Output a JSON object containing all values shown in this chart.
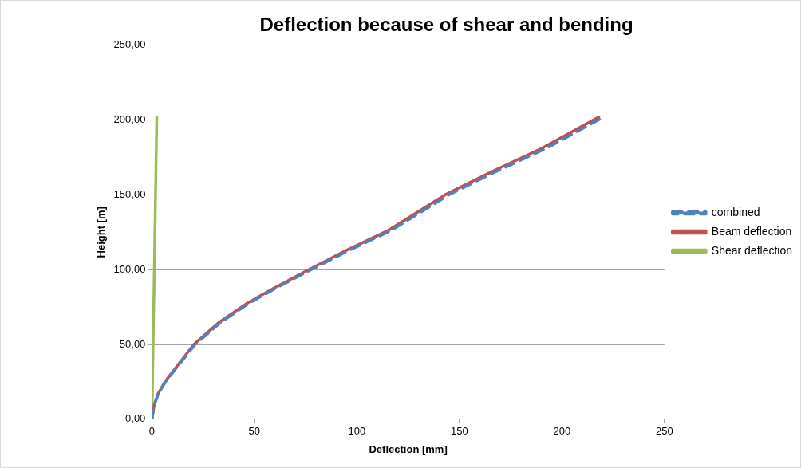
{
  "chart_data": {
    "type": "line",
    "title": "Deflection because of shear and bending",
    "xlabel": "Deflection [mm]",
    "ylabel": "Height [m]",
    "xlim": [
      0,
      250
    ],
    "xticks": [
      0,
      50,
      100,
      150,
      200,
      250
    ],
    "ylim": [
      0,
      250
    ],
    "yticks": [
      {
        "value": 0,
        "label": "0,00"
      },
      {
        "value": 50,
        "label": "50,00"
      },
      {
        "value": 100,
        "label": "100,00"
      },
      {
        "value": 150,
        "label": "150,00"
      },
      {
        "value": 200,
        "label": "200,00"
      },
      {
        "value": 250,
        "label": "250,00"
      }
    ],
    "grid": "y",
    "legend": "right",
    "marker": "none",
    "series": [
      {
        "name": "combined",
        "color": "#4f81bd",
        "line_style": "dashed",
        "x": [
          0,
          1.3,
          3.2,
          6.7,
          12.4,
          21.1,
          33.8,
          48,
          61,
          77.7,
          96.4,
          116.5,
          144.8,
          167,
          192.2,
          220.4
        ],
        "values": [
          0,
          10,
          17,
          25,
          35,
          50,
          65,
          78,
          88,
          100,
          113,
          126,
          150,
          165,
          181,
          202
        ]
      },
      {
        "name": "Beam deflection",
        "color": "#c0504d",
        "line_style": "solid",
        "x": [
          0,
          1.2,
          3,
          6.4,
          12,
          20.5,
          33,
          47,
          60,
          76.5,
          95,
          115,
          143,
          165,
          190,
          218
        ],
        "values": [
          0,
          10,
          17,
          25,
          35,
          50,
          65,
          78,
          88,
          100,
          113,
          126,
          150,
          165,
          181,
          202
        ]
      },
      {
        "name": "Shear deflection",
        "color": "#9bbb59",
        "line_style": "solid",
        "x": [
          0,
          1.2,
          2.4
        ],
        "values": [
          0,
          100,
          202
        ]
      }
    ]
  }
}
